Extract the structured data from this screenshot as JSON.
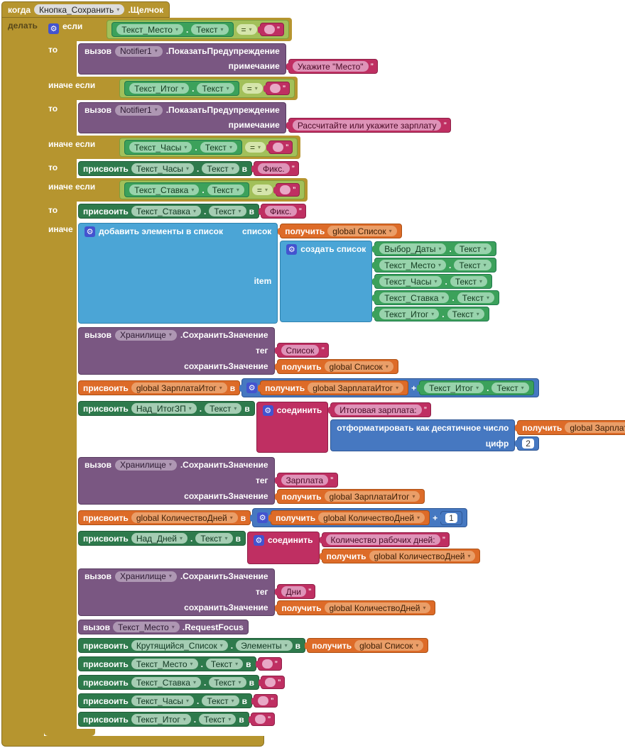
{
  "colors": {
    "canvas": "#FFFFFF",
    "event_gold": "#B6952F",
    "control_gold": "#B6952F",
    "logic_green": "#A2C05A",
    "component_getter_green": "#3CA15B",
    "component_setter_green": "#2E7A4C",
    "text_magenta": "#BF2F62",
    "lists_blue": "#4BA5D6",
    "variables_orange": "#DD6B28",
    "math_blue": "#4678C1",
    "procedure_purple": "#7A5782",
    "mutator_blue": "#4353CF"
  },
  "icons": {
    "gear": "⚙"
  },
  "kw": {
    "when": "когда",
    "do": "делать",
    "if": "если",
    "then": "то",
    "elseif": "иначе если",
    "else": "иначе",
    "call": "вызов",
    "set": "присвоить",
    "in": "в",
    "get": "получить",
    "eq": "=",
    "plus": "+",
    "dot": "."
  },
  "event": {
    "component": "Кнопка_Сохранить",
    "event": ".Щелчок"
  },
  "conds": [
    {
      "component": "Текст_Место",
      "prop": "Текст"
    },
    {
      "component": "Текст_Итог",
      "prop": "Текст"
    },
    {
      "component": "Текст_Часы",
      "prop": "Текст"
    },
    {
      "component": "Текст_Ставка",
      "prop": "Текст"
    }
  ],
  "notify1": {
    "component": "Notifier1",
    "method": ".ПоказатьПредупреждение",
    "param": "примечание",
    "message": "Укажите \"Место\""
  },
  "notify2": {
    "component": "Notifier1",
    "method": ".ПоказатьПредупреждение",
    "param": "примечание",
    "message": "Рассчитайте или укажите зарплату"
  },
  "fix1": {
    "component": "Текст_Часы",
    "prop": "Текст",
    "value": "Фикс."
  },
  "fix2": {
    "component": "Текст_Ставка",
    "prop": "Текст",
    "value": "Фикс."
  },
  "else": {
    "add_items": {
      "title": "добавить элементы в список",
      "list_label": "список",
      "item_label": "item",
      "list_get": "global Список",
      "make_list": "создать список",
      "items": [
        {
          "component": "Выбор_Даты",
          "prop": "Текст"
        },
        {
          "component": "Текст_Место",
          "prop": "Текст"
        },
        {
          "component": "Текст_Часы",
          "prop": "Текст"
        },
        {
          "component": "Текст_Ставка",
          "prop": "Текст"
        },
        {
          "component": "Текст_Итог",
          "prop": "Текст"
        }
      ]
    },
    "store_list": {
      "component": "Хранилище",
      "method": ".СохранитьЗначение",
      "tag_label": "тег",
      "tag": "Список",
      "value_label": "сохранитьЗначение",
      "value_get": "global Список"
    },
    "add_salary": {
      "var": "global ЗарплатаИтог",
      "get": "global ЗарплатаИтог",
      "add_component": "Текст_Итог",
      "add_prop": "Текст"
    },
    "label_salary": {
      "component": "Над_ИтогЗП",
      "prop": "Текст",
      "join": "соединить",
      "text": "Итоговая зарплата: ",
      "format": "отформатировать как десятичное число",
      "format_get": "global ЗарплатаИтог",
      "digits_label": "цифр",
      "digits": "2"
    },
    "store_salary": {
      "component": "Хранилище",
      "method": ".СохранитьЗначение",
      "tag_label": "тег",
      "tag": "Зарплата",
      "value_label": "сохранитьЗначение",
      "value_get": "global ЗарплатаИтог"
    },
    "add_days": {
      "var": "global КоличествоДней",
      "get": "global КоличествоДней",
      "number": "1"
    },
    "label_days": {
      "component": "Над_Дней",
      "prop": "Текст",
      "join": "соединить",
      "text": "Количество рабочих дней: ",
      "get": "global КоличествоДней"
    },
    "store_days": {
      "component": "Хранилище",
      "method": ".СохранитьЗначение",
      "tag_label": "тег",
      "tag": "Дни",
      "value_label": "сохранитьЗначение",
      "value_get": "global КоличествоДней"
    },
    "focus": {
      "component": "Текст_Место",
      "method": ".RequestFocus"
    },
    "spinner": {
      "component": "Крутящийся_Список",
      "prop": "Элементы",
      "get": "global Список"
    },
    "clears": [
      {
        "component": "Текст_Место",
        "prop": "Текст"
      },
      {
        "component": "Текст_Ставка",
        "prop": "Текст"
      },
      {
        "component": "Текст_Часы",
        "prop": "Текст"
      },
      {
        "component": "Текст_Итог",
        "prop": "Текст"
      }
    ]
  }
}
